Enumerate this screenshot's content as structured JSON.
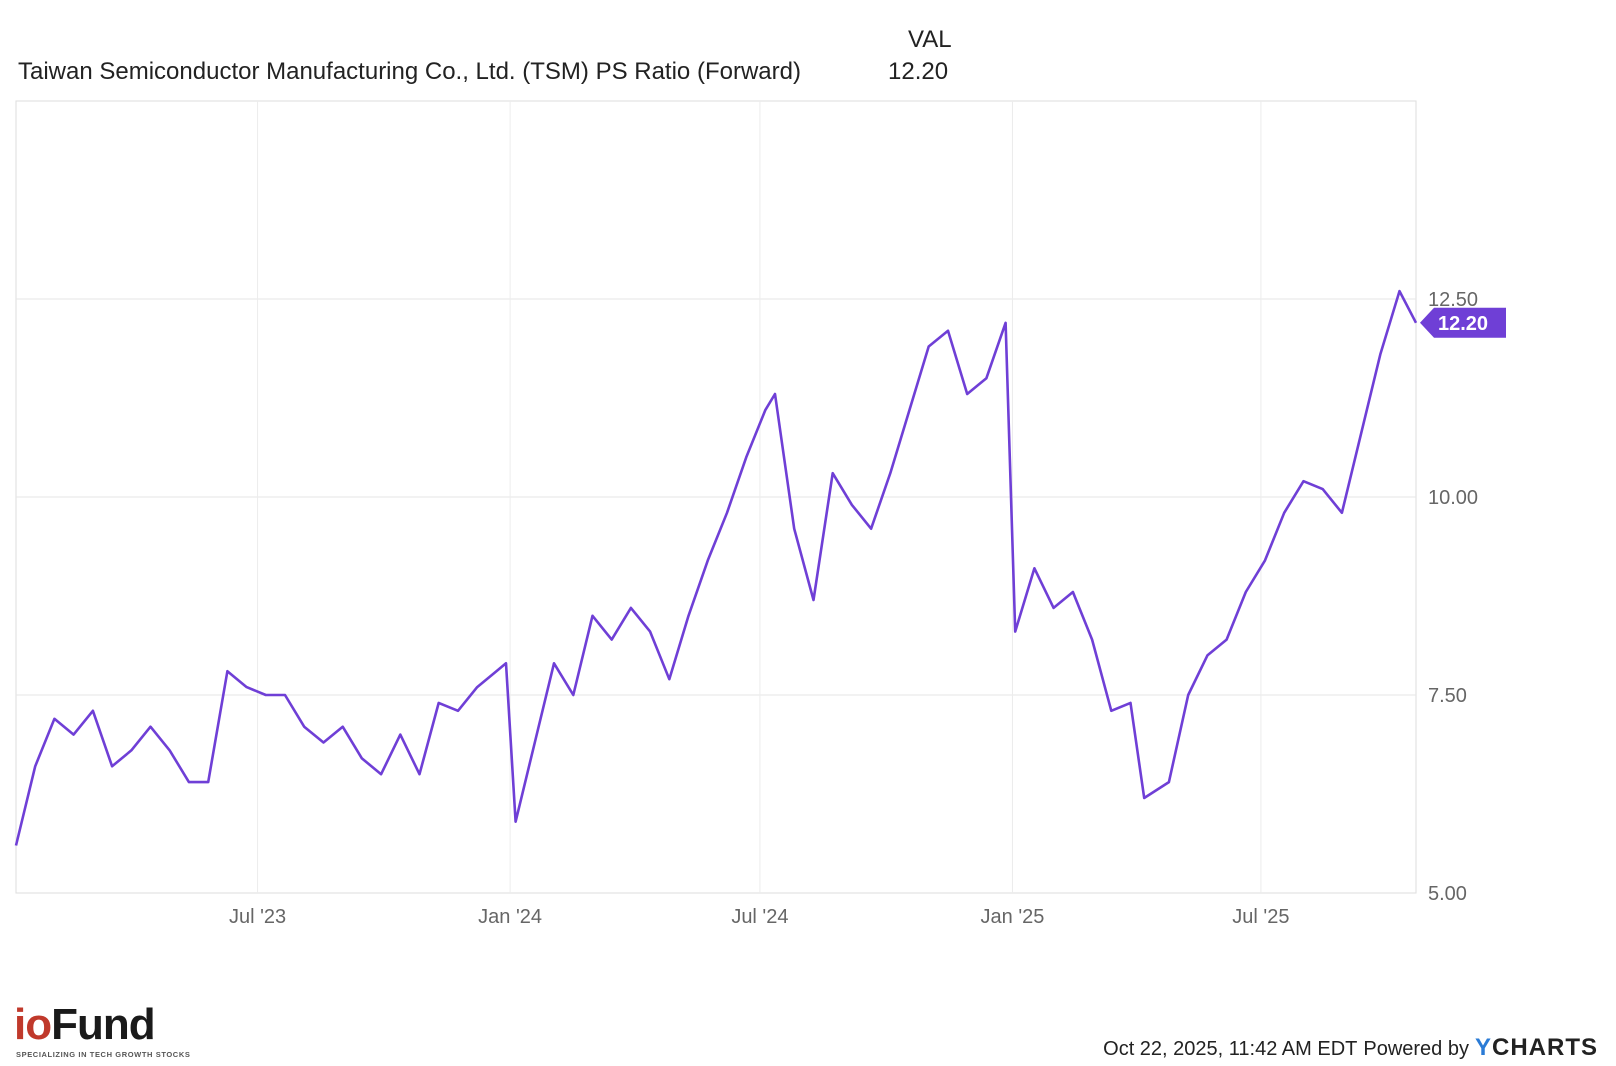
{
  "legend": {
    "value_header": "VAL",
    "series_name": "Taiwan Semiconductor Manufacturing Co., Ltd. (TSM) PS Ratio (Forward)",
    "series_value": "12.20"
  },
  "chart_data": {
    "type": "line",
    "title": "",
    "xlabel": "",
    "ylabel": "",
    "y_ticks": [
      "5.00",
      "7.50",
      "10.00",
      "12.50"
    ],
    "x_ticks": [
      "Jul '23",
      "Jan '24",
      "Jul '24",
      "Jan '25",
      "Jul '25"
    ],
    "ylim": [
      5.0,
      15.0
    ],
    "xlim": [
      "2023-01-06",
      "2025-10-22"
    ],
    "grid": true,
    "last_value_label": "12.20",
    "color": "#6f3fd6",
    "series": [
      {
        "x": [
          "2023-01-06",
          "2023-01-20",
          "2023-02-03",
          "2023-02-17",
          "2023-03-03",
          "2023-03-17",
          "2023-03-31",
          "2023-04-14",
          "2023-04-28",
          "2023-05-12",
          "2023-05-26",
          "2023-06-09",
          "2023-06-23",
          "2023-07-07",
          "2023-07-21",
          "2023-08-04",
          "2023-08-18",
          "2023-09-01",
          "2023-09-15",
          "2023-09-29",
          "2023-10-13",
          "2023-10-27",
          "2023-11-10",
          "2023-11-24",
          "2023-12-08",
          "2023-12-22",
          "2023-12-29",
          "2024-01-05",
          "2024-01-19",
          "2024-02-02",
          "2024-02-16",
          "2024-03-01",
          "2024-03-15",
          "2024-03-29",
          "2024-04-12",
          "2024-04-26",
          "2024-05-10",
          "2024-05-24",
          "2024-06-07",
          "2024-06-21",
          "2024-07-05",
          "2024-07-12",
          "2024-07-26",
          "2024-08-09",
          "2024-08-23",
          "2024-09-06",
          "2024-09-20",
          "2024-10-04",
          "2024-10-18",
          "2024-11-01",
          "2024-11-15",
          "2024-11-29",
          "2024-12-13",
          "2024-12-27",
          "2025-01-03",
          "2025-01-17",
          "2025-01-31",
          "2025-02-14",
          "2025-02-28",
          "2025-03-14",
          "2025-03-28",
          "2025-04-07",
          "2025-04-25",
          "2025-05-09",
          "2025-05-23",
          "2025-06-06",
          "2025-06-20",
          "2025-07-04",
          "2025-07-18",
          "2025-08-01",
          "2025-08-15",
          "2025-08-29",
          "2025-09-12",
          "2025-09-26",
          "2025-10-10",
          "2025-10-22"
        ],
        "values": [
          5.6,
          6.6,
          7.2,
          7.0,
          7.3,
          6.6,
          6.8,
          7.1,
          6.8,
          6.4,
          6.4,
          7.8,
          7.6,
          7.5,
          7.5,
          7.1,
          6.9,
          7.1,
          6.7,
          6.5,
          7.0,
          6.5,
          7.4,
          7.3,
          7.6,
          7.8,
          7.9,
          5.9,
          6.9,
          7.9,
          7.5,
          8.5,
          8.2,
          8.6,
          8.3,
          7.7,
          8.5,
          9.2,
          9.8,
          10.5,
          11.1,
          11.3,
          9.6,
          8.7,
          10.3,
          9.9,
          9.6,
          10.3,
          11.1,
          11.9,
          12.1,
          11.3,
          11.5,
          12.2,
          8.3,
          9.1,
          8.6,
          8.8,
          8.2,
          7.3,
          7.4,
          6.2,
          6.4,
          7.5,
          8.0,
          8.2,
          8.8,
          9.2,
          9.8,
          10.2,
          10.1,
          9.8,
          10.8,
          11.8,
          12.6,
          12.2
        ]
      }
    ]
  },
  "footer": {
    "logo_text": "Fund",
    "logo_prefix": "io",
    "logo_tagline": "SPECIALIZING IN TECH GROWTH STOCKS",
    "timestamp": "Oct 22, 2025, 11:42 AM EDT",
    "powered_by": "Powered by",
    "brand_y": "Y",
    "brand_rest": "CHARTS"
  }
}
